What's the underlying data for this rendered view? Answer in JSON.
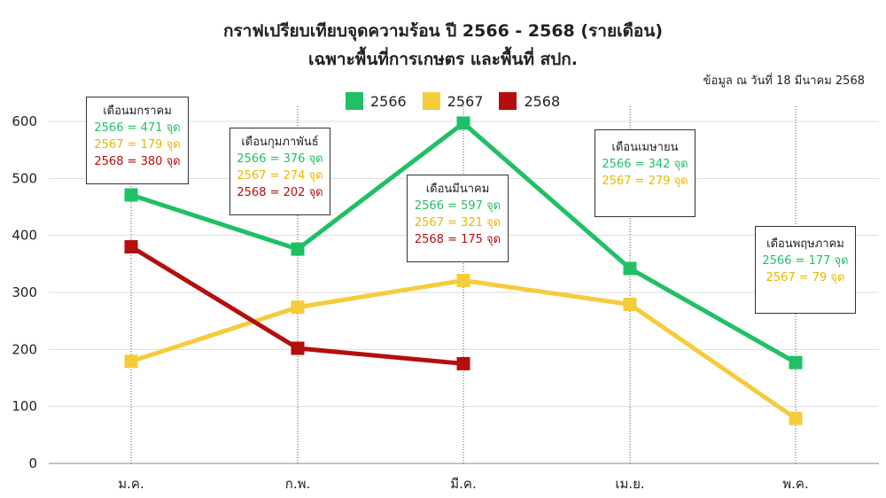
{
  "title_line1": "กราฟเปรียบเทียบจุดความร้อน ปี 2566 - 2568 (รายเดือน)",
  "title_line2": "เฉพาะพื้นที่การเกษตร และพื้นที่ สปก.",
  "as_of": "ข้อมูล ณ วันที่ 18 มีนาคม 2568",
  "colors": {
    "2566": "#20c065",
    "2567": "#f4cc3c",
    "2568": "#b50e0e"
  },
  "chart_data": {
    "type": "line",
    "categories": [
      "ม.ค.",
      "ก.พ.",
      "มี.ค.",
      "เม.ย.",
      "พ.ค."
    ],
    "series": [
      {
        "name": "2566",
        "values": [
          471,
          376,
          597,
          342,
          177
        ]
      },
      {
        "name": "2567",
        "values": [
          179,
          274,
          321,
          279,
          79
        ]
      },
      {
        "name": "2568",
        "values": [
          380,
          202,
          175,
          null,
          null
        ]
      }
    ],
    "yticks": [
      0,
      100,
      200,
      300,
      400,
      500,
      600
    ],
    "ylim": [
      0,
      600
    ],
    "grid": true,
    "legend": "top-center"
  },
  "callouts": [
    {
      "title": "เดือนมกราคม",
      "lines": [
        {
          "series": "2566",
          "text": "2566 = 471 จุด"
        },
        {
          "series": "2567",
          "text": "2567 = 179 จุด"
        },
        {
          "series": "2568",
          "text": "2568 = 380 จุด"
        }
      ]
    },
    {
      "title": "เดือนกุมภาพันธ์",
      "lines": [
        {
          "series": "2566",
          "text": "2566 = 376 จุด"
        },
        {
          "series": "2567",
          "text": "2567 = 274 จุด"
        },
        {
          "series": "2568",
          "text": "2568 = 202 จุด"
        }
      ]
    },
    {
      "title": "เดือนมีนาคม",
      "lines": [
        {
          "series": "2566",
          "text": "2566 = 597 จุด"
        },
        {
          "series": "2567",
          "text": "2567 = 321 จุด"
        },
        {
          "series": "2568",
          "text": "2568 = 175 จุด"
        }
      ]
    },
    {
      "title": "เดือนเมษายน",
      "lines": [
        {
          "series": "2566",
          "text": "2566 = 342 จุด"
        },
        {
          "series": "2567",
          "text": "2567 = 279 จุด"
        }
      ]
    },
    {
      "title": "เดือนพฤษภาคม",
      "lines": [
        {
          "series": "2566",
          "text": "2566 = 177 จุด"
        },
        {
          "series": "2567",
          "text": "2567 = 79 จุด"
        }
      ]
    }
  ]
}
